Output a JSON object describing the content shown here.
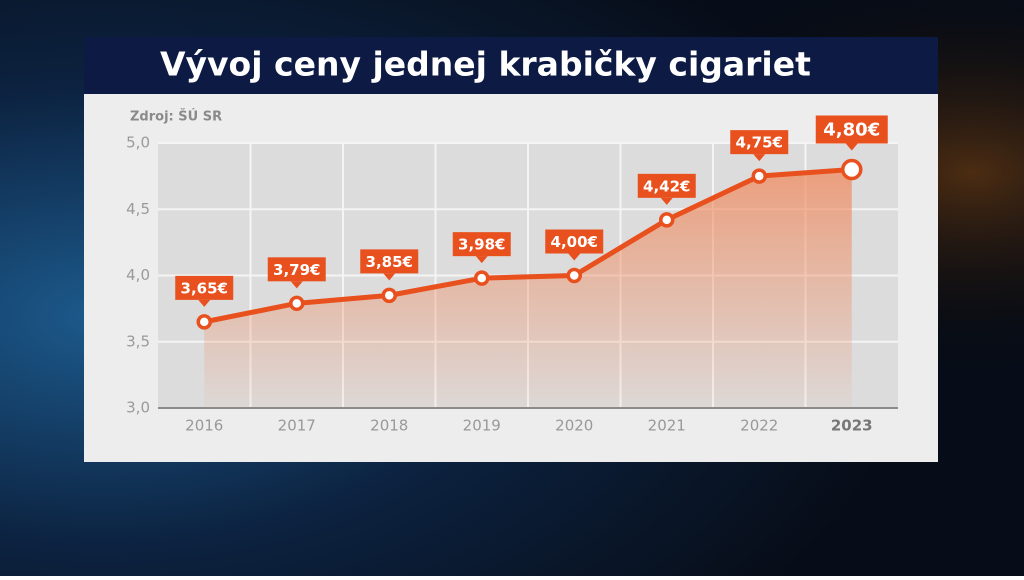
{
  "chart_data": {
    "type": "line",
    "title": "Vývoj ceny jednej krabičky cigariet",
    "source": "Zdroj: ŠÚ SR",
    "categories": [
      "2016",
      "2017",
      "2018",
      "2019",
      "2020",
      "2021",
      "2022",
      "2023"
    ],
    "values": [
      3.65,
      3.79,
      3.85,
      3.98,
      4.0,
      4.42,
      4.75,
      4.8
    ],
    "value_labels": [
      "3,65€",
      "3,79€",
      "3,85€",
      "3,98€",
      "4,00€",
      "4,42€",
      "4,75€",
      "4,80€"
    ],
    "color": "#e8501e",
    "ylim": [
      3,
      5
    ],
    "yticks": [
      {
        "value": 3,
        "label": "3,0"
      },
      {
        "value": 3.5,
        "label": "3,5"
      },
      {
        "value": 4,
        "label": "4,0"
      },
      {
        "value": 4.5,
        "label": "4,5"
      },
      {
        "value": 5,
        "label": "5,0"
      }
    ],
    "grid": true
  }
}
